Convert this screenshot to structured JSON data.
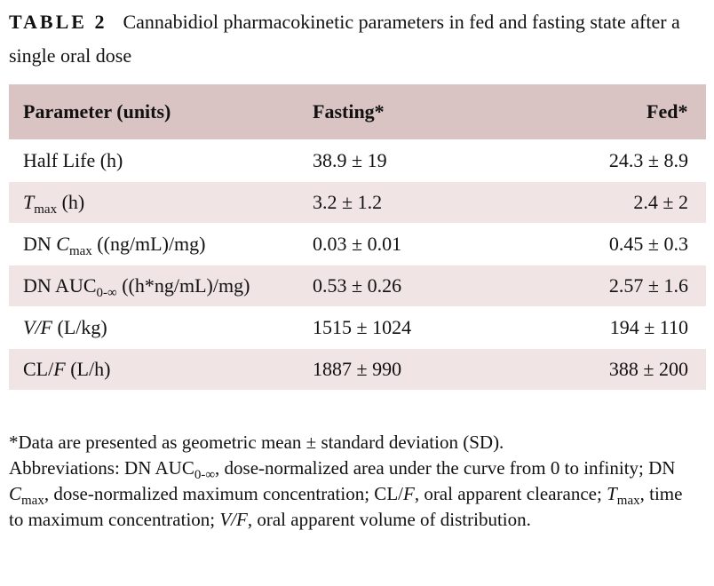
{
  "title": {
    "label": "TABLE 2",
    "caption": "Cannabidiol pharmacokinetic parameters in fed and fasting state after a single oral dose"
  },
  "table": {
    "header": [
      "Parameter (units)",
      "Fasting*",
      "Fed*"
    ],
    "rows": [
      [
        [
          "Half Life (h)"
        ],
        "38.9 ± 19",
        "24.3 ± 8.9"
      ],
      [
        [
          "T",
          "max",
          " (h)"
        ],
        "3.2 ± 1.2",
        "2.4 ± 2"
      ],
      [
        [
          "DN ",
          "C",
          "max",
          " ((ng/mL)/mg)"
        ],
        "0.03 ± 0.01",
        "0.45 ± 0.3"
      ],
      [
        [
          "DN AUC",
          "0-∞",
          " ((h*ng/mL)/mg)"
        ],
        "0.53 ± 0.26",
        "2.57 ± 1.6"
      ],
      [
        [
          "V/F",
          " (L/kg)"
        ],
        "1515 ± 1024",
        "194 ± 110"
      ],
      [
        [
          "CL/",
          "F",
          " (L/h)"
        ],
        "1887 ± 990",
        "388 ± 200"
      ]
    ]
  },
  "footnotes": {
    "note": "*Data are presented as geometric mean ± standard deviation (SD).",
    "abbreviations": [
      "Abbreviations: DN AUC",
      "0-∞",
      ", dose-normalized area under the curve from 0 to infinity; DN ",
      "C",
      "max",
      ", dose-normalized maximum concentration; CL/",
      "F",
      ", oral apparent clearance; ",
      "T",
      "max",
      ", time to maximum concentration; ",
      "V/F",
      ", oral apparent volume of distribution."
    ]
  }
}
